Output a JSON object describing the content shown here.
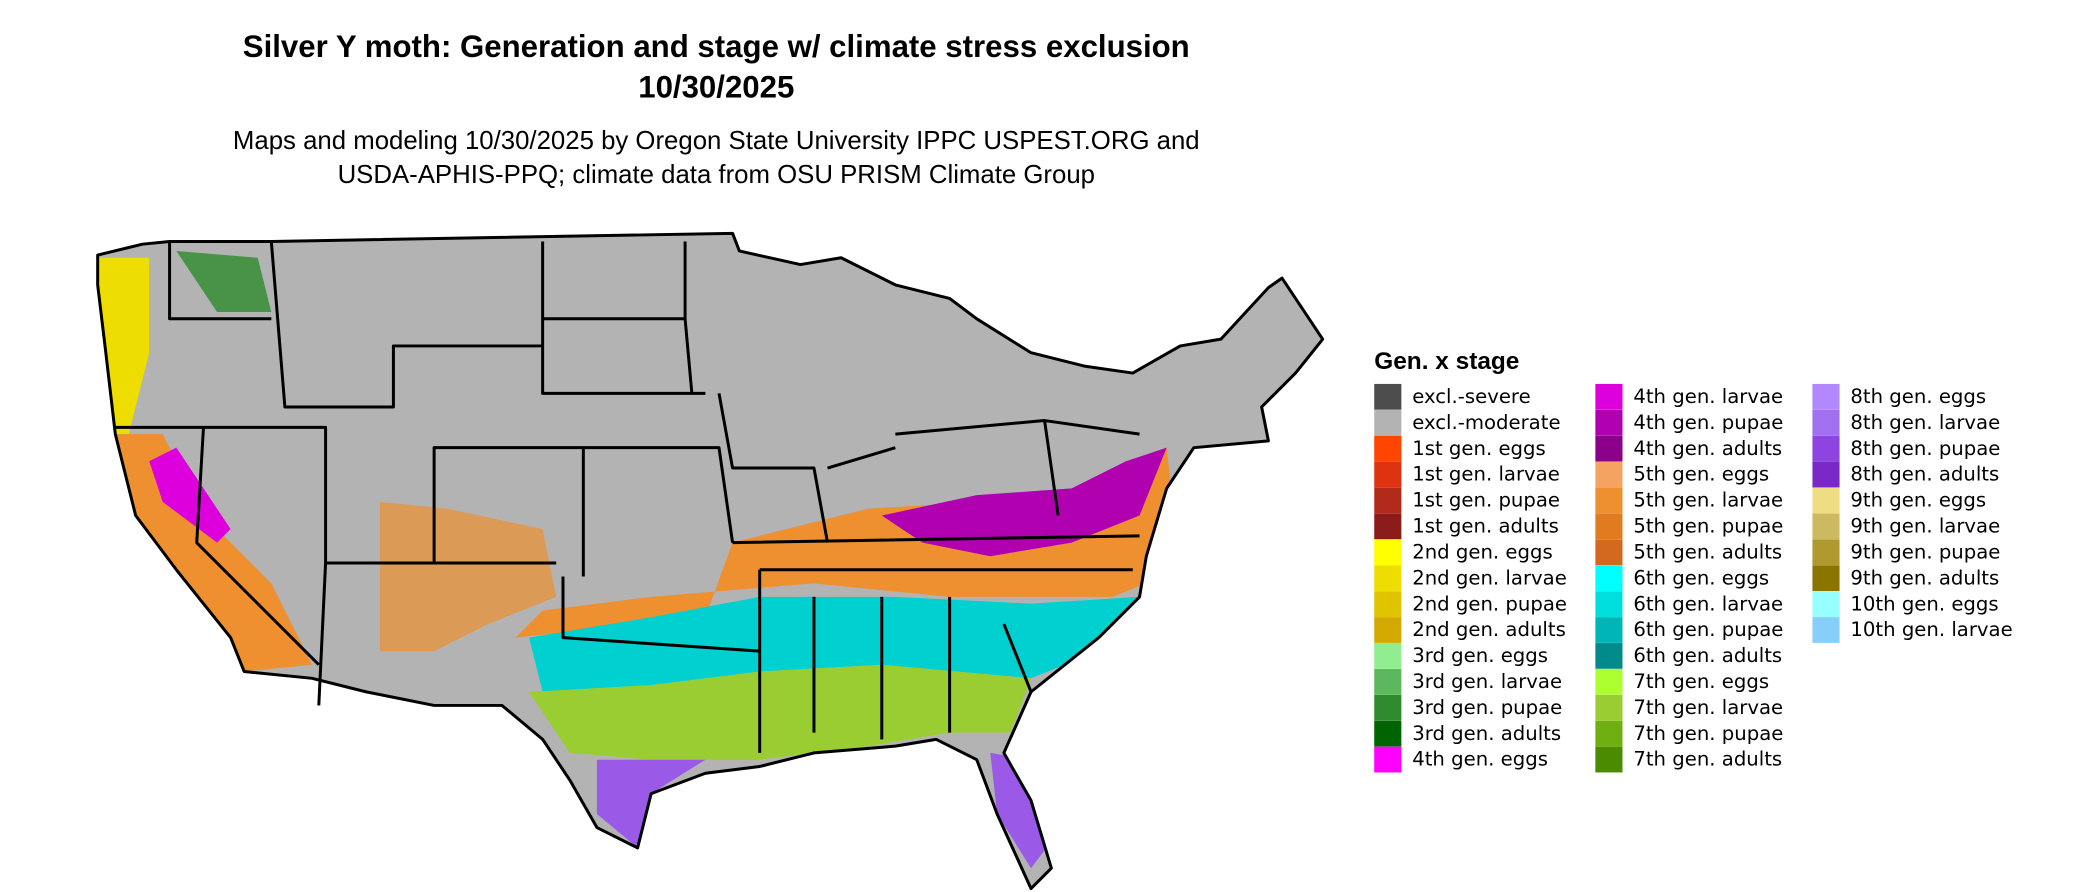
{
  "title": [
    "Silver Y moth: Generation and stage w/ climate stress exclusion",
    "10/30/2025"
  ],
  "subtitle": [
    "Maps and modeling 10/30/2025 by Oregon State University IPPC USPEST.ORG and",
    "USDA-APHIS-PPQ; climate data from OSU PRISM Climate Group"
  ],
  "legend": {
    "title": "Gen. x stage",
    "items": [
      {
        "label": "excl.-severe",
        "color": "#4d4d4d"
      },
      {
        "label": "excl.-moderate",
        "color": "#b3b3b3"
      },
      {
        "label": "1st gen. eggs",
        "color": "#ff4500"
      },
      {
        "label": "1st gen. larvae",
        "color": "#dd3311"
      },
      {
        "label": "1st gen. pupae",
        "color": "#b22a1a"
      },
      {
        "label": "1st gen. adults",
        "color": "#8b1a1a"
      },
      {
        "label": "2nd gen. eggs",
        "color": "#ffff00"
      },
      {
        "label": "2nd gen. larvae",
        "color": "#eedd00"
      },
      {
        "label": "2nd gen. pupae",
        "color": "#e0c400"
      },
      {
        "label": "2nd gen. adults",
        "color": "#d4aa00"
      },
      {
        "label": "3rd gen. eggs",
        "color": "#90ee90"
      },
      {
        "label": "3rd gen. larvae",
        "color": "#5cb85c"
      },
      {
        "label": "3rd gen. pupae",
        "color": "#2e8b2e"
      },
      {
        "label": "3rd gen. adults",
        "color": "#006400"
      },
      {
        "label": "4th gen. eggs",
        "color": "#ff00ff"
      },
      {
        "label": "4th gen. larvae",
        "color": "#dd00dd"
      },
      {
        "label": "4th gen. pupae",
        "color": "#b000b0"
      },
      {
        "label": "4th gen. adults",
        "color": "#8b008b"
      },
      {
        "label": "5th gen. eggs",
        "color": "#f4a460"
      },
      {
        "label": "5th gen. larvae",
        "color": "#ee9030"
      },
      {
        "label": "5th gen. pupae",
        "color": "#e07b20"
      },
      {
        "label": "5th gen. adults",
        "color": "#d2691e"
      },
      {
        "label": "6th gen. eggs",
        "color": "#00ffff"
      },
      {
        "label": "6th gen. larvae",
        "color": "#00dddd"
      },
      {
        "label": "6th gen. pupae",
        "color": "#00b5b5"
      },
      {
        "label": "6th gen. adults",
        "color": "#008b8b"
      },
      {
        "label": "7th gen. eggs",
        "color": "#adff2f"
      },
      {
        "label": "7th gen. larvae",
        "color": "#9acd32"
      },
      {
        "label": "7th gen. pupae",
        "color": "#6fb010"
      },
      {
        "label": "7th gen. adults",
        "color": "#4a8b00"
      },
      {
        "label": "8th gen. eggs",
        "color": "#b388ff"
      },
      {
        "label": "8th gen. larvae",
        "color": "#a070f0"
      },
      {
        "label": "8th gen. pupae",
        "color": "#8e44e0"
      },
      {
        "label": "8th gen. adults",
        "color": "#7a28c8"
      },
      {
        "label": "9th gen. eggs",
        "color": "#eedd82"
      },
      {
        "label": "9th gen. larvae",
        "color": "#cdba60"
      },
      {
        "label": "9th gen. pupae",
        "color": "#b09a30"
      },
      {
        "label": "9th gen. adults",
        "color": "#8b7500"
      },
      {
        "label": "10th gen. eggs",
        "color": "#97ffff"
      },
      {
        "label": "10th gen. larvae",
        "color": "#87cefa"
      }
    ]
  }
}
